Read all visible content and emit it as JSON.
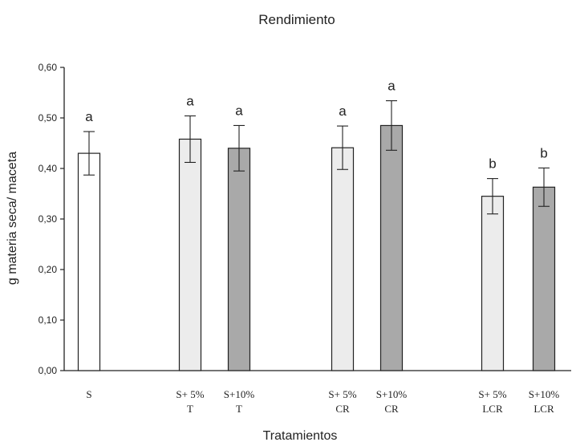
{
  "chart_data": {
    "type": "bar",
    "title": "Rendimiento",
    "xlabel": "Tratamientos",
    "ylabel": "g materia seca/ maceta",
    "ylim": [
      0,
      0.6
    ],
    "yticks": [
      "0,00",
      "0,10",
      "0,20",
      "0,30",
      "0,40",
      "0,50",
      "0,60"
    ],
    "grid": false,
    "legend": "none",
    "categories": [
      {
        "line1": "S",
        "line2": ""
      },
      {
        "line1": "S+ 5%",
        "line2": "T"
      },
      {
        "line1": "S+10%",
        "line2": "T"
      },
      {
        "line1": "S+ 5%",
        "line2": "CR"
      },
      {
        "line1": "S+10%",
        "line2": "CR"
      },
      {
        "line1": "S+ 5%",
        "line2": "LCR"
      },
      {
        "line1": "S+10%",
        "line2": "LCR"
      }
    ],
    "values": [
      0.43,
      0.458,
      0.44,
      0.441,
      0.485,
      0.345,
      0.363
    ],
    "error": [
      0.043,
      0.046,
      0.045,
      0.043,
      0.049,
      0.035,
      0.038
    ],
    "significance": [
      "a",
      "a",
      "a",
      "a",
      "a",
      "b",
      "b"
    ],
    "fill_colors": [
      "#ffffff",
      "#ececec",
      "#a9a9a9",
      "#ececec",
      "#a9a9a9",
      "#ececec",
      "#a9a9a9"
    ]
  }
}
